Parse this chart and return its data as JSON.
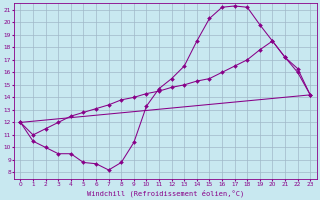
{
  "xlabel": "Windchill (Refroidissement éolien,°C)",
  "xlim": [
    -0.5,
    23.5
  ],
  "ylim": [
    7.5,
    21.5
  ],
  "yticks": [
    8,
    9,
    10,
    11,
    12,
    13,
    14,
    15,
    16,
    17,
    18,
    19,
    20,
    21
  ],
  "xticks": [
    0,
    1,
    2,
    3,
    4,
    5,
    6,
    7,
    8,
    9,
    10,
    11,
    12,
    13,
    14,
    15,
    16,
    17,
    18,
    19,
    20,
    21,
    22,
    23
  ],
  "bg_color": "#c8e8f0",
  "line_color": "#880088",
  "grid_color": "#a0b8c8",
  "line1_x": [
    0,
    1,
    2,
    3,
    4,
    5,
    6,
    7,
    8,
    9,
    10,
    11,
    12,
    13,
    14,
    15,
    16,
    17,
    18,
    19,
    20,
    21,
    22,
    23
  ],
  "line1_y": [
    12,
    10.5,
    10,
    9.5,
    9.5,
    8.8,
    8.7,
    8.2,
    8.8,
    10.4,
    13.3,
    14.7,
    15.5,
    16.5,
    18.5,
    20.3,
    21.2,
    21.3,
    21.2,
    19.8,
    18.5,
    17.2,
    16.0,
    14.2
  ],
  "line2_x": [
    0,
    1,
    2,
    3,
    4,
    5,
    6,
    7,
    8,
    9,
    10,
    11,
    12,
    13,
    14,
    15,
    16,
    17,
    18,
    19,
    20,
    21,
    22,
    23
  ],
  "line2_y": [
    12,
    11.0,
    11.5,
    12.0,
    12.5,
    12.8,
    13.1,
    13.4,
    13.8,
    14.0,
    14.3,
    14.5,
    14.8,
    15.0,
    15.3,
    15.5,
    16.0,
    16.5,
    17.0,
    17.8,
    18.5,
    17.2,
    16.3,
    14.2
  ],
  "line3_x": [
    0,
    23
  ],
  "line3_y": [
    12,
    14.2
  ]
}
